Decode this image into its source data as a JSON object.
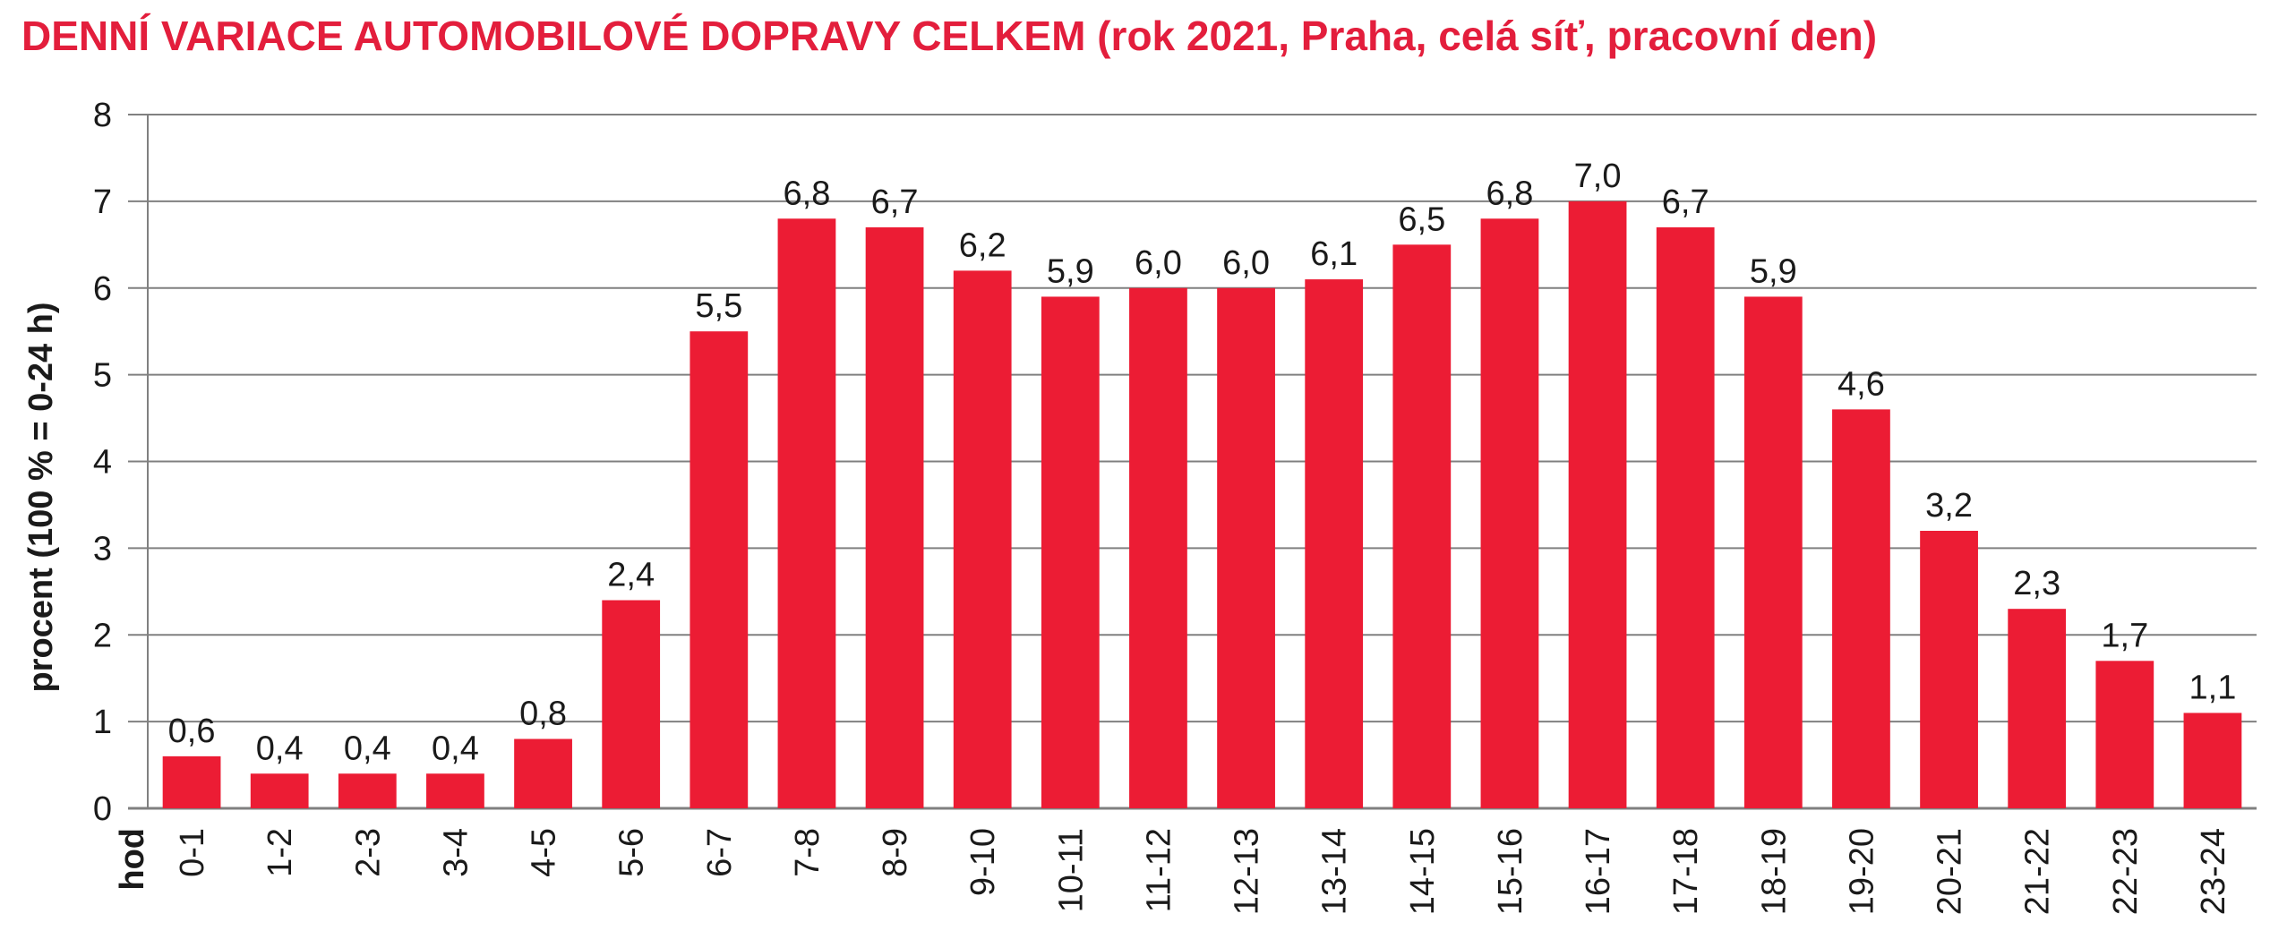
{
  "colors": {
    "title": "#e31e3c",
    "bar": "#ec1c34",
    "grid": "#808080",
    "text": "#1a1a1a"
  },
  "chart_data": {
    "type": "bar",
    "title": "DENNÍ VARIACE AUTOMOBILOVÉ DOPRAVY CELKEM",
    "subtitle": "(rok 2021, Praha, celá síť, pracovní den)",
    "xlabel": "hod",
    "ylabel": "procent (100 % = 0-24 h)",
    "ylim": [
      0,
      8
    ],
    "yticks": [
      "0",
      "1",
      "2",
      "3",
      "4",
      "5",
      "6",
      "7",
      "8"
    ],
    "grid": true,
    "legend": "none",
    "categories": [
      "0-1",
      "1-2",
      "2-3",
      "3-4",
      "4-5",
      "5-6",
      "6-7",
      "7-8",
      "8-9",
      "9-10",
      "10-11",
      "11-12",
      "12-13",
      "13-14",
      "14-15",
      "15-16",
      "16-17",
      "17-18",
      "18-19",
      "19-20",
      "20-21",
      "21-22",
      "22-23",
      "23-24"
    ],
    "values": [
      0.6,
      0.4,
      0.4,
      0.4,
      0.8,
      2.4,
      5.5,
      6.8,
      6.7,
      6.2,
      5.9,
      6.0,
      6.0,
      6.1,
      6.5,
      6.8,
      7.0,
      6.7,
      5.9,
      4.6,
      3.2,
      2.3,
      1.7,
      1.1
    ],
    "data_labels": [
      "0,6",
      "0,4",
      "0,4",
      "0,4",
      "0,8",
      "2,4",
      "5,5",
      "6,8",
      "6,7",
      "6,2",
      "5,9",
      "6,0",
      "6,0",
      "6,1",
      "6,5",
      "6,8",
      "7,0",
      "6,7",
      "5,9",
      "4,6",
      "3,2",
      "2,3",
      "1,7",
      "1,1"
    ]
  }
}
